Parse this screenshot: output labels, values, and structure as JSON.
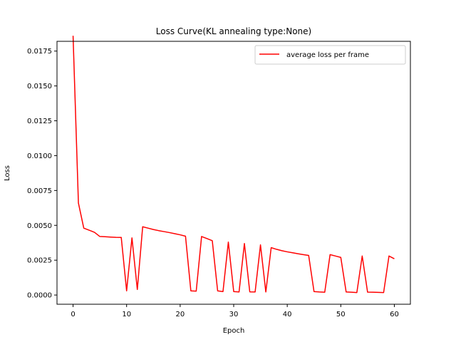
{
  "chart_data": {
    "type": "line",
    "title": "Loss Curve(KL annealing type:None)",
    "xlabel": "Epoch",
    "ylabel": "Loss",
    "xlim": [
      -3,
      63
    ],
    "ylim": [
      -0.00066,
      0.0182
    ],
    "xticks": [
      0,
      10,
      20,
      30,
      40,
      50,
      60
    ],
    "yticks": [
      0.0,
      0.0025,
      0.005,
      0.0075,
      0.01,
      0.0125,
      0.015,
      0.0175
    ],
    "ytick_labels": [
      "0.0000",
      "0.0025",
      "0.0050",
      "0.0075",
      "0.0100",
      "0.0125",
      "0.0150",
      "0.0175"
    ],
    "grid": false,
    "legend_position": "top-right",
    "series": [
      {
        "name": "average loss per frame",
        "color": "#ff0000",
        "x": [
          0,
          1,
          2,
          3,
          4,
          5,
          6,
          7,
          8,
          9,
          10,
          11,
          12,
          13,
          14,
          15,
          16,
          17,
          18,
          19,
          20,
          21,
          22,
          23,
          24,
          25,
          26,
          27,
          28,
          29,
          30,
          31,
          32,
          33,
          34,
          35,
          36,
          37,
          38,
          39,
          40,
          41,
          42,
          43,
          44,
          45,
          46,
          47,
          48,
          49,
          50,
          51,
          52,
          53,
          54,
          55,
          56,
          57,
          58,
          59,
          60
        ],
        "y": [
          0.0186,
          0.0066,
          0.0048,
          0.00465,
          0.0045,
          0.0042,
          0.00418,
          0.00416,
          0.00414,
          0.00413,
          0.0003,
          0.0041,
          0.0004,
          0.0049,
          0.0048,
          0.0047,
          0.00462,
          0.00455,
          0.00448,
          0.0044,
          0.00432,
          0.00422,
          0.0003,
          0.00028,
          0.0042,
          0.00405,
          0.0039,
          0.0003,
          0.00025,
          0.0038,
          0.00025,
          0.00022,
          0.0037,
          0.00023,
          0.00022,
          0.0036,
          0.00022,
          0.0034,
          0.00328,
          0.00318,
          0.0031,
          0.00303,
          0.00296,
          0.0029,
          0.00284,
          0.00025,
          0.00022,
          0.0002,
          0.0029,
          0.0028,
          0.0027,
          0.00022,
          0.0002,
          0.00018,
          0.0028,
          0.00021,
          0.0002,
          0.00019,
          0.00018,
          0.0028,
          0.0026
        ]
      }
    ]
  }
}
